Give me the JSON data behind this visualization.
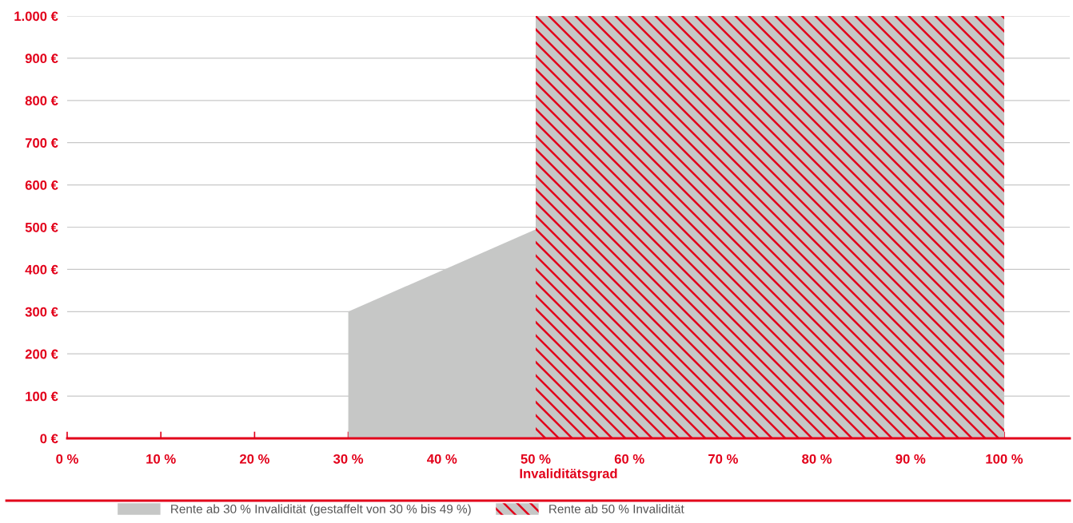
{
  "chart_data": {
    "type": "area",
    "xlabel": "Invaliditätsgrad",
    "series": [
      {
        "name": "Rente ab 30 % Invalidität (gestaffelt von 30 % bis 49 %)",
        "color": "#c6c7c6",
        "x": [
          30,
          50
        ],
        "values": [
          300,
          495
        ]
      },
      {
        "name": "Rente ab 50 % Invalidität",
        "color": "#e2001a",
        "x": [
          50,
          100
        ],
        "values": [
          1000,
          1000
        ]
      }
    ],
    "xlim": [
      0,
      107
    ],
    "ylim": [
      0,
      1000
    ],
    "xticks": [
      {
        "value": 0,
        "label": "0 %"
      },
      {
        "value": 10,
        "label": "10 %"
      },
      {
        "value": 20,
        "label": "20 %"
      },
      {
        "value": 30,
        "label": "30 %"
      },
      {
        "value": 40,
        "label": "40 %"
      },
      {
        "value": 50,
        "label": "50 %"
      },
      {
        "value": 60,
        "label": "60 %"
      },
      {
        "value": 70,
        "label": "70 %"
      },
      {
        "value": 80,
        "label": "80 %"
      },
      {
        "value": 90,
        "label": "90 %"
      },
      {
        "value": 100,
        "label": "100 %"
      }
    ],
    "yticks": [
      {
        "value": 0,
        "label": "0 €"
      },
      {
        "value": 100,
        "label": "100 €"
      },
      {
        "value": 200,
        "label": "200 €"
      },
      {
        "value": 300,
        "label": "300 €"
      },
      {
        "value": 400,
        "label": "400 €"
      },
      {
        "value": 500,
        "label": "500 €"
      },
      {
        "value": 600,
        "label": "600 €"
      },
      {
        "value": 700,
        "label": "700 €"
      },
      {
        "value": 800,
        "label": "800 €"
      },
      {
        "value": 900,
        "label": "900 €"
      },
      {
        "value": 1000,
        "label": "1.000 €"
      }
    ],
    "grid": "y",
    "legend": "bottom"
  }
}
